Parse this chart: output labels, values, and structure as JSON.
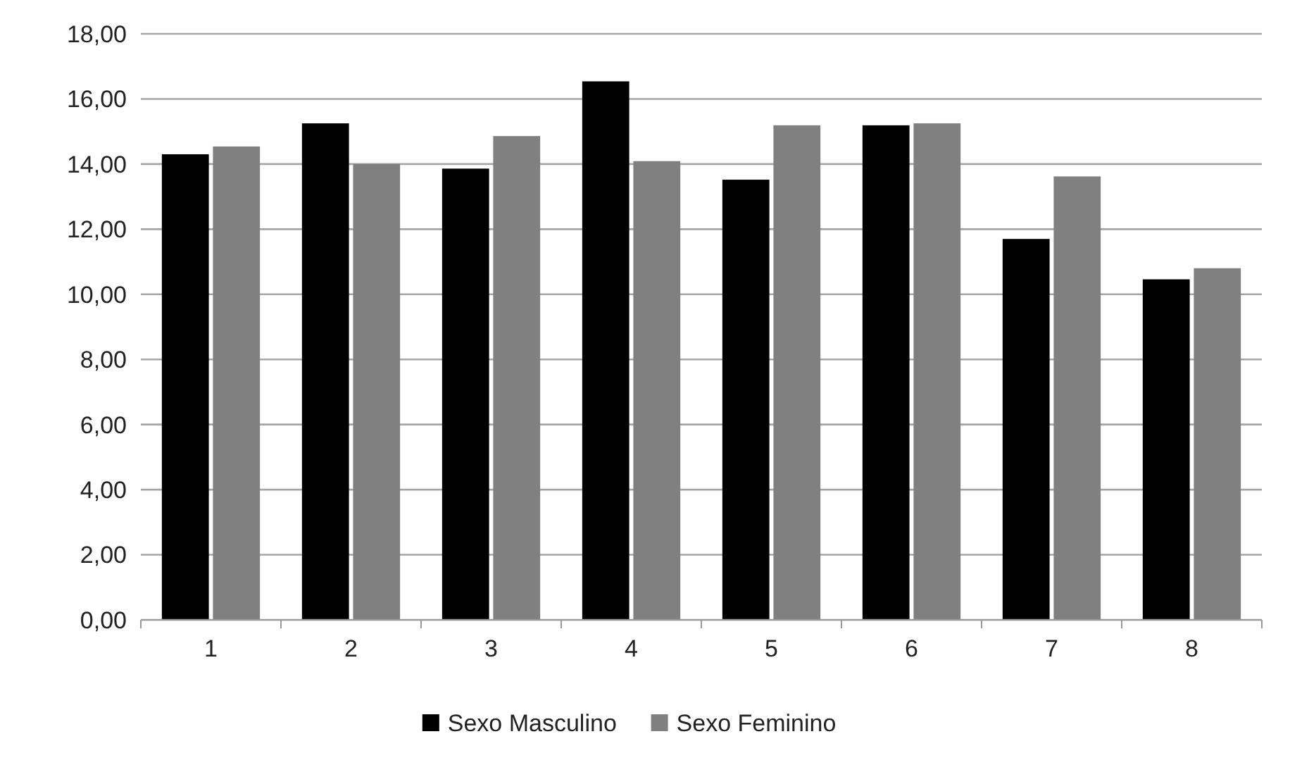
{
  "chart_data": {
    "type": "bar",
    "categories": [
      "1",
      "2",
      "3",
      "4",
      "5",
      "6",
      "7",
      "8"
    ],
    "series": [
      {
        "name": "Sexo Masculino",
        "color": "#000000",
        "values": [
          14.3,
          15.25,
          13.86,
          16.54,
          13.52,
          15.19,
          11.7,
          10.46
        ]
      },
      {
        "name": "Sexo Feminino",
        "color": "#808080",
        "values": [
          14.54,
          14.0,
          14.86,
          14.09,
          15.19,
          15.25,
          13.62,
          10.8
        ]
      }
    ],
    "ylim": [
      0,
      18
    ],
    "yticks": [
      {
        "value": 0,
        "label": "0,00"
      },
      {
        "value": 2,
        "label": "2,00"
      },
      {
        "value": 4,
        "label": "4,00"
      },
      {
        "value": 6,
        "label": "6,00"
      },
      {
        "value": 8,
        "label": "8,00"
      },
      {
        "value": 10,
        "label": "10,00"
      },
      {
        "value": 12,
        "label": "12,00"
      },
      {
        "value": 14,
        "label": "14,00"
      },
      {
        "value": 16,
        "label": "16,00"
      },
      {
        "value": 18,
        "label": "18,00"
      }
    ],
    "grid": "y",
    "legend": "bottom"
  }
}
